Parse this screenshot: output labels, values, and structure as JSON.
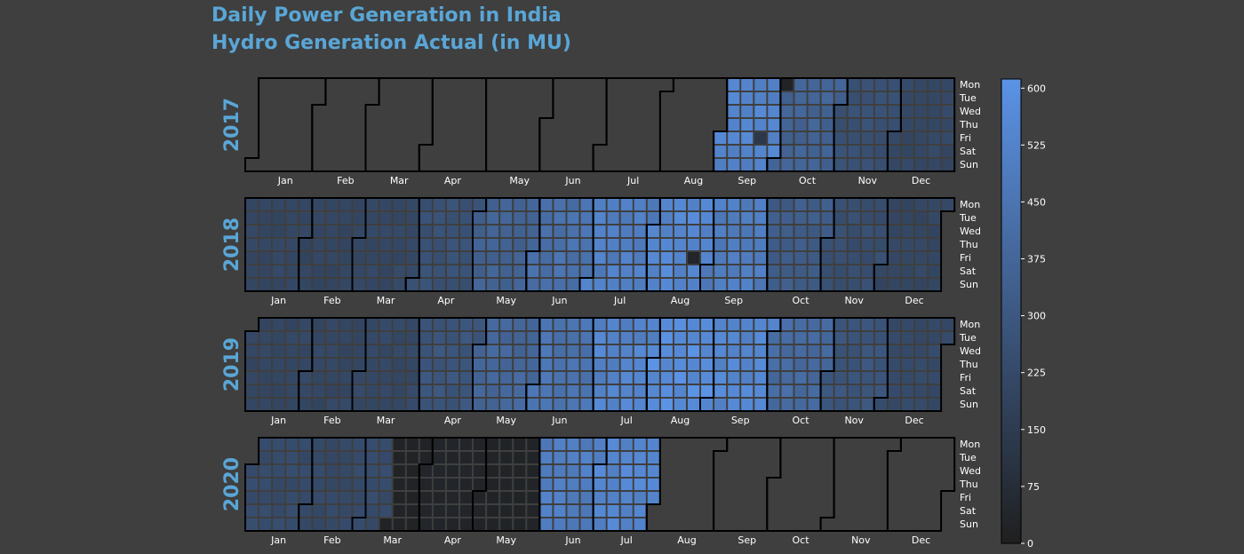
{
  "title": {
    "line1": "Daily Power Generation in India",
    "line2": "Hydro Generation Actual (in MU)"
  },
  "colors": {
    "background": "#3f3f3f",
    "title": "#5aa6d6",
    "year_label": "#5aa6d6",
    "colormap_low": "#1f1f1f",
    "colormap_high": "#5b93e6",
    "month_border": "#000000",
    "tick_text": "#ffffff"
  },
  "chart_data": {
    "type": "heatmap",
    "title": "Daily Power Generation in India\nHydro Generation Actual (in MU)",
    "colorbar": {
      "min": 0,
      "max": 612,
      "ticks": [
        0,
        75,
        150,
        225,
        300,
        375,
        450,
        525,
        600
      ]
    },
    "weekday_labels": [
      "Mon",
      "Tue",
      "Wed",
      "Thu",
      "Fri",
      "Sat",
      "Sun"
    ],
    "month_labels": [
      "Jan",
      "Feb",
      "Mar",
      "Apr",
      "May",
      "Jun",
      "Jul",
      "Aug",
      "Sep",
      "Oct",
      "Nov",
      "Dec"
    ],
    "years": [
      {
        "year": "2017",
        "data_start": "2017-09-01",
        "data_end": "2017-12-31",
        "monthly_level": {
          "Sep": 530,
          "Oct": 360,
          "Nov": 260,
          "Dec": 215
        },
        "anomalies": [
          {
            "date": "2017-10-02",
            "value": 25
          },
          {
            "date": "2017-09-22",
            "value": 130
          }
        ]
      },
      {
        "year": "2018",
        "data_start": "2018-01-01",
        "data_end": "2018-12-31",
        "monthly_level": {
          "Jan": 210,
          "Feb": 205,
          "Mar": 215,
          "Apr": 265,
          "May": 355,
          "Jun": 430,
          "Jul": 500,
          "Aug": 545,
          "Sep": 490,
          "Oct": 330,
          "Nov": 250,
          "Dec": 210
        },
        "anomalies": [
          {
            "date": "2018-08-24",
            "value": 30
          }
        ]
      },
      {
        "year": "2019",
        "data_start": "2019-01-01",
        "data_end": "2019-12-31",
        "monthly_level": {
          "Jan": 210,
          "Feb": 210,
          "Mar": 220,
          "Apr": 285,
          "May": 380,
          "Jun": 445,
          "Jul": 530,
          "Aug": 580,
          "Sep": 545,
          "Oct": 400,
          "Nov": 285,
          "Dec": 225
        },
        "anomalies": []
      },
      {
        "year": "2020",
        "data_start": "2020-01-01",
        "data_end": "2020-07-31",
        "monthly_level": {
          "Jan": 235,
          "Feb": 225,
          "Mar": 90,
          "Apr": 30,
          "May": 25,
          "Jun": 495,
          "Jul": 540
        },
        "notes": "Mar 1-14 shown as ~235, rest of Mar-May near 0"
      }
    ]
  }
}
